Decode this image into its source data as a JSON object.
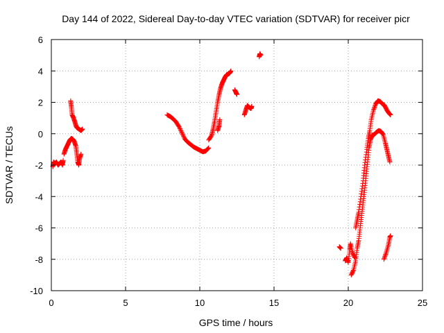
{
  "chart_data": {
    "type": "scatter",
    "title": "Day 144 of 2022, Sidereal Day-to-day VTEC variation (SDTVAR) for receiver picr",
    "xlabel": "GPS time / hours",
    "ylabel": "SDTVAR / TECUs",
    "xlim": [
      0,
      25
    ],
    "ylim": [
      -10,
      6
    ],
    "xticks": [
      0,
      5,
      10,
      15,
      20,
      25
    ],
    "yticks": [
      -10,
      -8,
      -6,
      -4,
      -2,
      0,
      2,
      4,
      6
    ],
    "xtick_labels": [
      "0",
      "5",
      "10",
      "15",
      "20",
      "25"
    ],
    "ytick_labels": [
      "-10",
      "-8",
      "-6",
      "-4",
      "-2",
      "0",
      "2",
      "4",
      "6"
    ],
    "grid": true,
    "marker": "+",
    "colors": {
      "series": "#ff0000",
      "grid": "#a0a0a0",
      "axes": "#000000"
    },
    "series": [
      {
        "name": "SDTVAR",
        "segments": [
          [
            [
              0.1,
              -2.1
            ],
            [
              0.15,
              -1.8
            ],
            [
              0.25,
              -1.9
            ],
            [
              0.35,
              -1.8
            ],
            [
              0.45,
              -2.0
            ],
            [
              0.55,
              -1.9
            ],
            [
              0.65,
              -1.8
            ],
            [
              0.75,
              -2.0
            ],
            [
              0.8,
              -1.7
            ]
          ],
          [
            [
              0.85,
              -1.3
            ],
            [
              0.95,
              -1.0
            ],
            [
              1.05,
              -0.8
            ],
            [
              1.15,
              -0.6
            ],
            [
              1.25,
              -0.4
            ],
            [
              1.35,
              -0.3
            ],
            [
              1.45,
              -0.35
            ],
            [
              1.55,
              -0.5
            ],
            [
              1.65,
              -0.8
            ],
            [
              1.72,
              -1.3
            ],
            [
              1.78,
              -1.8
            ],
            [
              1.85,
              -2.0
            ],
            [
              1.9,
              -1.6
            ],
            [
              2.0,
              -1.3
            ]
          ],
          [
            [
              1.3,
              2.1
            ],
            [
              1.35,
              1.7
            ],
            [
              1.4,
              1.2
            ],
            [
              1.5,
              1.0
            ],
            [
              1.6,
              0.7
            ],
            [
              1.7,
              0.4
            ],
            [
              1.85,
              0.3
            ],
            [
              2.0,
              0.2
            ],
            [
              2.1,
              0.3
            ]
          ],
          [
            [
              7.8,
              1.2
            ],
            [
              8.0,
              1.1
            ],
            [
              8.2,
              0.95
            ],
            [
              8.4,
              0.75
            ],
            [
              8.6,
              0.45
            ],
            [
              8.8,
              0.05
            ],
            [
              9.0,
              -0.35
            ],
            [
              9.2,
              -0.55
            ],
            [
              9.4,
              -0.7
            ],
            [
              9.6,
              -0.85
            ],
            [
              9.8,
              -0.95
            ],
            [
              10.0,
              -1.05
            ],
            [
              10.2,
              -1.15
            ],
            [
              10.4,
              -1.1
            ],
            [
              10.6,
              -0.9
            ]
          ],
          [
            [
              10.6,
              -0.4
            ],
            [
              10.8,
              -0.1
            ],
            [
              10.9,
              0.3
            ],
            [
              11.0,
              0.8
            ],
            [
              11.1,
              1.4
            ],
            [
              11.2,
              2.0
            ],
            [
              11.3,
              2.5
            ],
            [
              11.4,
              2.9
            ],
            [
              11.5,
              3.2
            ],
            [
              11.6,
              3.4
            ],
            [
              11.7,
              3.6
            ],
            [
              11.8,
              3.75
            ],
            [
              11.9,
              3.8
            ],
            [
              12.0,
              3.85
            ],
            [
              12.1,
              4.0
            ]
          ],
          [
            [
              11.2,
              0.2
            ],
            [
              11.3,
              0.5
            ],
            [
              11.35,
              0.9
            ]
          ],
          [
            [
              12.35,
              2.8
            ],
            [
              12.45,
              2.6
            ],
            [
              12.5,
              2.5
            ]
          ],
          [
            [
              13.0,
              1.2
            ],
            [
              13.1,
              1.5
            ],
            [
              13.2,
              1.8
            ],
            [
              13.3,
              1.7
            ],
            [
              13.45,
              1.6
            ],
            [
              13.5,
              1.75
            ]
          ],
          [
            [
              14.0,
              4.9
            ],
            [
              14.05,
              5.1
            ],
            [
              14.1,
              5.0
            ]
          ],
          [
            [
              19.4,
              -7.2
            ],
            [
              19.5,
              -7.3
            ]
          ],
          [
            [
              19.8,
              -8.1
            ],
            [
              19.9,
              -7.9
            ],
            [
              20.0,
              -8.2
            ],
            [
              20.1,
              -7.4
            ],
            [
              20.15,
              -7.0
            ],
            [
              20.3,
              -7.6
            ],
            [
              20.45,
              -7.9
            ]
          ],
          [
            [
              20.2,
              -9.0
            ],
            [
              20.35,
              -8.7
            ],
            [
              20.5,
              -8.1
            ],
            [
              20.6,
              -7.3
            ],
            [
              20.7,
              -6.8
            ],
            [
              20.8,
              -6.0
            ],
            [
              20.9,
              -5.2
            ],
            [
              21.0,
              -4.4
            ],
            [
              21.1,
              -3.6
            ],
            [
              21.2,
              -2.7
            ],
            [
              21.3,
              -1.8
            ],
            [
              21.4,
              -0.9
            ],
            [
              21.5,
              -0.4
            ],
            [
              21.6,
              -0.1
            ],
            [
              21.75,
              -0.05
            ],
            [
              21.9,
              0.1
            ],
            [
              22.05,
              0.2
            ],
            [
              22.2,
              0.15
            ],
            [
              22.35,
              -0.05
            ],
            [
              22.5,
              -0.6
            ],
            [
              22.6,
              -1.0
            ],
            [
              22.7,
              -1.4
            ],
            [
              22.8,
              -1.8
            ]
          ],
          [
            [
              20.5,
              -6.0
            ],
            [
              20.6,
              -5.5
            ],
            [
              20.7,
              -5.0
            ],
            [
              20.85,
              -4.0
            ],
            [
              21.0,
              -3.0
            ],
            [
              21.1,
              -2.0
            ],
            [
              21.25,
              -1.0
            ],
            [
              21.35,
              -0.3
            ],
            [
              21.45,
              0.2
            ],
            [
              21.55,
              0.9
            ],
            [
              21.7,
              1.5
            ],
            [
              21.85,
              1.9
            ],
            [
              22.0,
              2.1
            ],
            [
              22.15,
              2.05
            ],
            [
              22.3,
              1.9
            ],
            [
              22.45,
              1.8
            ],
            [
              22.6,
              1.5
            ],
            [
              22.75,
              1.3
            ],
            [
              22.85,
              1.2
            ]
          ],
          [
            [
              22.4,
              -8.0
            ],
            [
              22.55,
              -7.6
            ],
            [
              22.7,
              -7.1
            ],
            [
              22.8,
              -6.6
            ],
            [
              22.85,
              -6.5
            ]
          ]
        ]
      }
    ]
  }
}
